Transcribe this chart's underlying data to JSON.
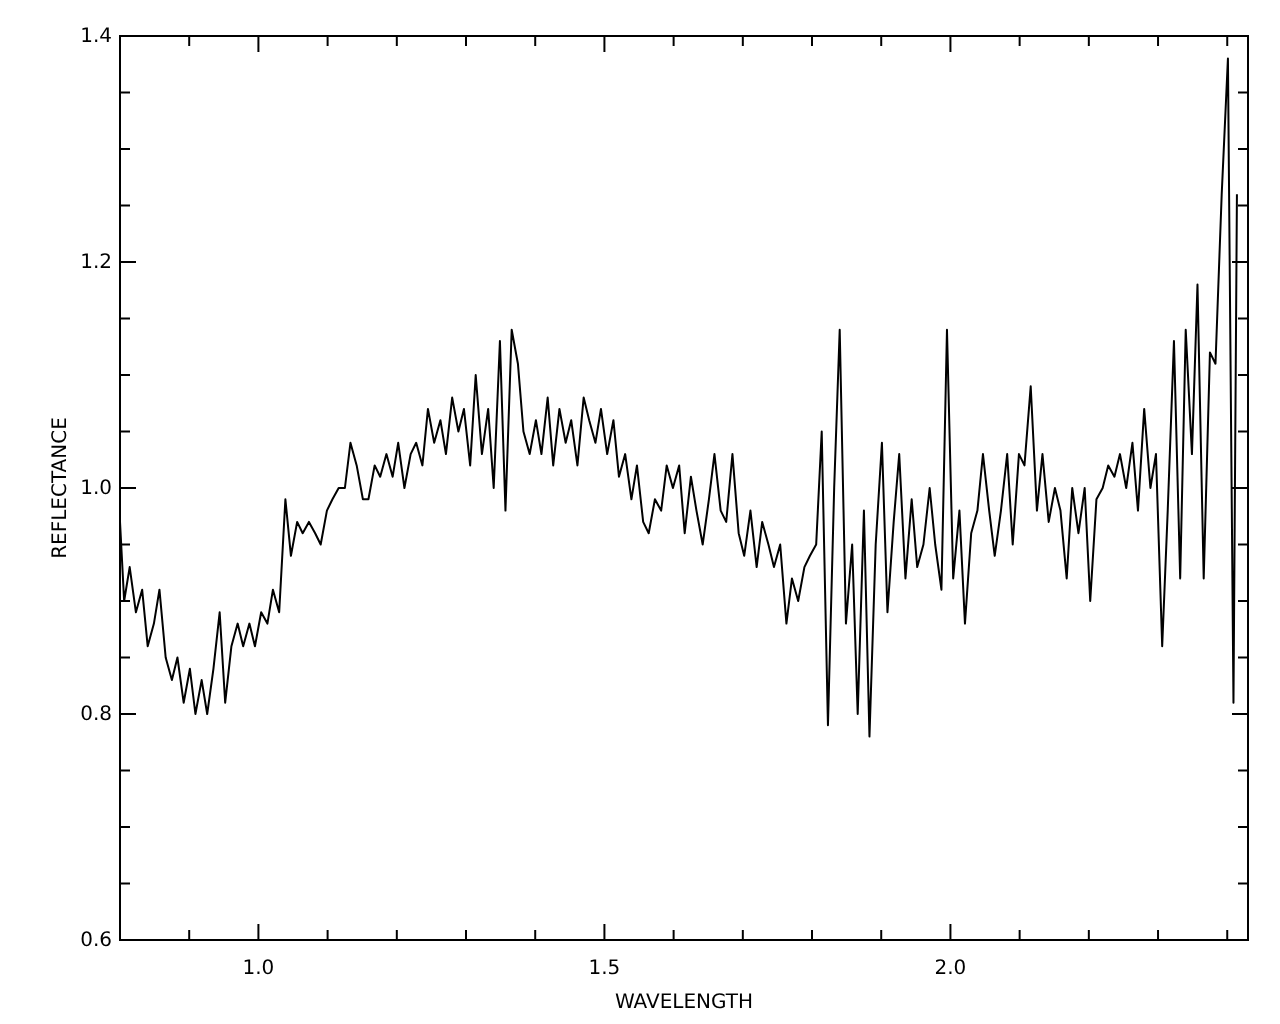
{
  "chart_data": {
    "type": "line",
    "xlabel": "WAVELENGTH",
    "ylabel": "REFLECTANCE",
    "xlim": [
      0.8,
      2.43
    ],
    "ylim": [
      0.6,
      1.4
    ],
    "xticks": [
      {
        "value": 0.9,
        "label": null
      },
      {
        "value": 1.0,
        "label": "1.0"
      },
      {
        "value": 1.1,
        "label": null
      },
      {
        "value": 1.2,
        "label": null
      },
      {
        "value": 1.3,
        "label": null
      },
      {
        "value": 1.4,
        "label": null
      },
      {
        "value": 1.5,
        "label": "1.5"
      },
      {
        "value": 1.6,
        "label": null
      },
      {
        "value": 1.7,
        "label": null
      },
      {
        "value": 1.8,
        "label": null
      },
      {
        "value": 1.9,
        "label": null
      },
      {
        "value": 2.0,
        "label": "2.0"
      },
      {
        "value": 2.1,
        "label": null
      },
      {
        "value": 2.2,
        "label": null
      },
      {
        "value": 2.3,
        "label": null
      },
      {
        "value": 2.4,
        "label": null
      }
    ],
    "yticks": [
      {
        "value": 0.6,
        "label": "0.6"
      },
      {
        "value": 0.65,
        "label": null
      },
      {
        "value": 0.7,
        "label": null
      },
      {
        "value": 0.75,
        "label": null
      },
      {
        "value": 0.8,
        "label": "0.8"
      },
      {
        "value": 0.85,
        "label": null
      },
      {
        "value": 0.9,
        "label": null
      },
      {
        "value": 0.95,
        "label": null
      },
      {
        "value": 1.0,
        "label": "1.0"
      },
      {
        "value": 1.05,
        "label": null
      },
      {
        "value": 1.1,
        "label": null
      },
      {
        "value": 1.15,
        "label": null
      },
      {
        "value": 1.2,
        "label": "1.2"
      },
      {
        "value": 1.25,
        "label": null
      },
      {
        "value": 1.3,
        "label": null
      },
      {
        "value": 1.35,
        "label": null
      },
      {
        "value": 1.4,
        "label": "1.4"
      }
    ],
    "grid": false,
    "marker": "none",
    "line_style": "solid",
    "series": [
      {
        "color": "#000000",
        "x": [
          0.8,
          0.806,
          0.814,
          0.823,
          0.832,
          0.84,
          0.849,
          0.857,
          0.866,
          0.875,
          0.883,
          0.892,
          0.901,
          0.909,
          0.918,
          0.926,
          0.935,
          0.944,
          0.952,
          0.961,
          0.97,
          0.978,
          0.987,
          0.995,
          1.004,
          1.013,
          1.021,
          1.03,
          1.039,
          1.047,
          1.056,
          1.064,
          1.073,
          1.082,
          1.09,
          1.099,
          1.107,
          1.116,
          1.125,
          1.133,
          1.142,
          1.151,
          1.159,
          1.168,
          1.176,
          1.185,
          1.194,
          1.202,
          1.211,
          1.22,
          1.228,
          1.237,
          1.245,
          1.254,
          1.263,
          1.271,
          1.28,
          1.289,
          1.297,
          1.306,
          1.314,
          1.323,
          1.332,
          1.34,
          1.349,
          1.357,
          1.366,
          1.375,
          1.383,
          1.392,
          1.401,
          1.409,
          1.418,
          1.426,
          1.435,
          1.444,
          1.452,
          1.461,
          1.47,
          1.478,
          1.487,
          1.495,
          1.504,
          1.513,
          1.521,
          1.53,
          1.539,
          1.547,
          1.556,
          1.564,
          1.573,
          1.582,
          1.59,
          1.599,
          1.608,
          1.616,
          1.625,
          1.633,
          1.642,
          1.651,
          1.659,
          1.668,
          1.676,
          1.685,
          1.694,
          1.702,
          1.711,
          1.72,
          1.728,
          1.737,
          1.745,
          1.754,
          1.763,
          1.771,
          1.78,
          1.789,
          1.797,
          1.806,
          1.814,
          1.823,
          1.832,
          1.84,
          1.849,
          1.858,
          1.866,
          1.875,
          1.883,
          1.892,
          1.901,
          1.909,
          1.918,
          1.926,
          1.935,
          1.944,
          1.952,
          1.961,
          1.97,
          1.978,
          1.987,
          1.995,
          2.004,
          2.013,
          2.021,
          2.03,
          2.039,
          2.047,
          2.056,
          2.064,
          2.073,
          2.082,
          2.09,
          2.099,
          2.107,
          2.116,
          2.125,
          2.133,
          2.142,
          2.151,
          2.159,
          2.168,
          2.176,
          2.185,
          2.194,
          2.202,
          2.211,
          2.22,
          2.228,
          2.237,
          2.245,
          2.254,
          2.263,
          2.271,
          2.28,
          2.289,
          2.297,
          2.306,
          2.314,
          2.323,
          2.332,
          2.34,
          2.349,
          2.357,
          2.366,
          2.375,
          2.383,
          2.392,
          2.401,
          2.409,
          2.414
        ],
        "values": [
          0.97,
          0.9,
          0.93,
          0.89,
          0.91,
          0.86,
          0.88,
          0.91,
          0.85,
          0.83,
          0.85,
          0.81,
          0.84,
          0.8,
          0.83,
          0.8,
          0.84,
          0.89,
          0.81,
          0.86,
          0.88,
          0.86,
          0.88,
          0.86,
          0.89,
          0.88,
          0.91,
          0.89,
          0.99,
          0.94,
          0.97,
          0.96,
          0.97,
          0.96,
          0.95,
          0.98,
          0.99,
          1.0,
          1.0,
          1.04,
          1.02,
          0.99,
          0.99,
          1.02,
          1.01,
          1.03,
          1.01,
          1.04,
          1.0,
          1.03,
          1.04,
          1.02,
          1.07,
          1.04,
          1.06,
          1.03,
          1.08,
          1.05,
          1.07,
          1.02,
          1.1,
          1.03,
          1.07,
          1.0,
          1.13,
          0.98,
          1.14,
          1.11,
          1.05,
          1.03,
          1.06,
          1.03,
          1.08,
          1.02,
          1.07,
          1.04,
          1.06,
          1.02,
          1.08,
          1.06,
          1.04,
          1.07,
          1.03,
          1.06,
          1.01,
          1.03,
          0.99,
          1.02,
          0.97,
          0.96,
          0.99,
          0.98,
          1.02,
          1.0,
          1.02,
          0.96,
          1.01,
          0.98,
          0.95,
          0.99,
          1.03,
          0.98,
          0.97,
          1.03,
          0.96,
          0.94,
          0.98,
          0.93,
          0.97,
          0.95,
          0.93,
          0.95,
          0.88,
          0.92,
          0.9,
          0.93,
          0.94,
          0.95,
          1.05,
          0.79,
          1.0,
          1.14,
          0.88,
          0.95,
          0.8,
          0.98,
          0.78,
          0.95,
          1.04,
          0.89,
          0.97,
          1.03,
          0.92,
          0.99,
          0.93,
          0.95,
          1.0,
          0.95,
          0.91,
          1.14,
          0.92,
          0.98,
          0.88,
          0.96,
          0.98,
          1.03,
          0.98,
          0.94,
          0.98,
          1.03,
          0.95,
          1.03,
          1.02,
          1.09,
          0.98,
          1.03,
          0.97,
          1.0,
          0.98,
          0.92,
          1.0,
          0.96,
          1.0,
          0.9,
          0.99,
          1.0,
          1.02,
          1.01,
          1.03,
          1.0,
          1.04,
          0.98,
          1.07,
          1.0,
          1.03,
          0.86,
          0.98,
          1.13,
          0.92,
          1.14,
          1.03,
          1.18,
          0.92,
          1.12,
          1.11,
          1.26,
          1.38,
          0.81,
          1.26
        ]
      }
    ]
  }
}
